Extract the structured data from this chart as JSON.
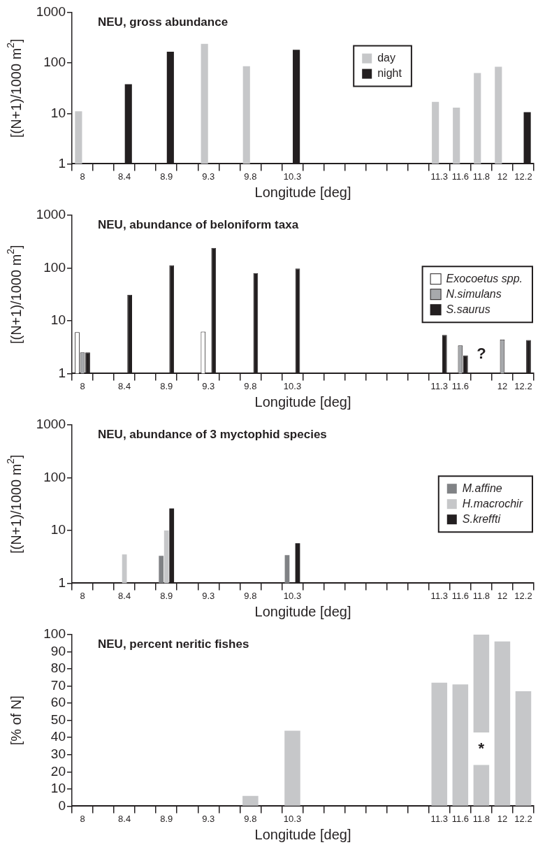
{
  "chart_data": [
    {
      "type": "bar",
      "title": "NEU, gross abundance",
      "xlabel": "Longitude [deg]",
      "ylabel": "[(N+1)/1000 m$^{2}$]",
      "categories": [
        "8",
        null,
        "8.4",
        null,
        "8.9",
        null,
        "9.3",
        null,
        "9.8",
        null,
        "10.3",
        null,
        null,
        null,
        null,
        null,
        null,
        "11.3",
        "11.6",
        "11.8",
        "12",
        "12.2"
      ],
      "log": true,
      "ylim": [
        1,
        1000
      ],
      "yticks": [
        1,
        10,
        100,
        1000
      ],
      "legend": "top right",
      "series": [
        {
          "name": "day",
          "color": "#c6c7c9",
          "values": [
            11,
            null,
            null,
            null,
            null,
            null,
            240,
            null,
            86,
            null,
            null,
            null,
            null,
            null,
            null,
            null,
            null,
            17,
            13,
            63,
            84,
            null
          ]
        },
        {
          "name": "night",
          "color": "#231f20",
          "values": [
            null,
            null,
            38,
            null,
            167,
            null,
            null,
            null,
            null,
            null,
            183,
            null,
            null,
            null,
            null,
            null,
            null,
            null,
            null,
            null,
            null,
            10.6
          ]
        }
      ]
    },
    {
      "type": "bar",
      "title": "NEU, abundance of beloniform taxa",
      "xlabel": "Longitude [deg]",
      "ylabel": "[(N+1)/1000 m$^{2}$]",
      "categories": [
        "8",
        null,
        "8.4",
        null,
        "8.9",
        null,
        "9.3",
        null,
        "9.8",
        null,
        "10.3",
        null,
        null,
        null,
        null,
        null,
        null,
        "11.3",
        "11.6",
        null,
        "12",
        "12.2"
      ],
      "log": true,
      "ylim": [
        1,
        1000
      ],
      "yticks": [
        1,
        10,
        100,
        1000
      ],
      "legend": "right",
      "annotations": [
        "?"
      ],
      "series": [
        {
          "name": "Exocoetus spp.",
          "color": "#ffffff",
          "values": [
            6.1,
            null,
            null,
            null,
            null,
            null,
            6.2,
            null,
            null,
            null,
            null,
            null,
            null,
            null,
            null,
            null,
            null,
            null,
            null,
            null,
            null,
            null
          ]
        },
        {
          "name": "N.simulans",
          "color": "#a7a9ac",
          "values": [
            2.5,
            null,
            null,
            null,
            null,
            null,
            null,
            null,
            null,
            null,
            null,
            null,
            null,
            null,
            null,
            null,
            null,
            null,
            3.4,
            null,
            4.4,
            null
          ]
        },
        {
          "name": "S.saurus",
          "color": "#231f20",
          "values": [
            2.5,
            null,
            31,
            null,
            113,
            null,
            240,
            null,
            80,
            null,
            98,
            null,
            null,
            null,
            null,
            null,
            null,
            5.4,
            2.2,
            null,
            null,
            4.3
          ]
        }
      ]
    },
    {
      "type": "bar",
      "title": "NEU, abundance of 3 myctophid species",
      "xlabel": "Longitude [deg]",
      "ylabel": "[(N+1)/1000 m$^{2}$]",
      "categories": [
        "8",
        null,
        "8.4",
        null,
        "8.9",
        null,
        "9.3",
        null,
        "9.8",
        null,
        "10.3",
        null,
        null,
        null,
        null,
        null,
        null,
        "11.3",
        "11.6",
        "11.8",
        "12",
        "12.2"
      ],
      "log": true,
      "ylim": [
        1,
        1000
      ],
      "yticks": [
        1,
        10,
        100,
        1000
      ],
      "legend": "right",
      "series": [
        {
          "name": "M.affine",
          "color": "#808285",
          "values": [
            null,
            null,
            null,
            null,
            3.3,
            null,
            null,
            null,
            null,
            null,
            3.4,
            null,
            null,
            null,
            null,
            null,
            null,
            null,
            null,
            null,
            null,
            null
          ]
        },
        {
          "name": "H.macrochir",
          "color": "#c6c7c9",
          "values": [
            null,
            null,
            3.5,
            null,
            10,
            null,
            null,
            null,
            null,
            null,
            null,
            null,
            null,
            null,
            null,
            null,
            null,
            null,
            null,
            null,
            null,
            null
          ]
        },
        {
          "name": "S.kreffti",
          "color": "#231f20",
          "values": [
            null,
            null,
            null,
            null,
            26,
            null,
            null,
            null,
            null,
            null,
            5.7,
            null,
            null,
            null,
            null,
            null,
            null,
            null,
            null,
            null,
            null,
            null
          ]
        }
      ]
    },
    {
      "type": "bar",
      "title": "NEU, percent neritic fishes",
      "xlabel": "Longitude [deg]",
      "ylabel": "[% of N]",
      "categories": [
        "8",
        null,
        "8.4",
        null,
        "8.9",
        null,
        "9.3",
        null,
        "9.8",
        null,
        "10.3",
        null,
        null,
        null,
        null,
        null,
        null,
        "11.3",
        "11.6",
        "11.8",
        "12",
        "12.2"
      ],
      "ylim": [
        0,
        100
      ],
      "yticks": [
        0,
        10,
        20,
        30,
        40,
        50,
        60,
        70,
        80,
        90,
        100
      ],
      "annotations": [
        "*"
      ],
      "series": [
        {
          "color": "#c6c7c9",
          "values": [
            null,
            null,
            null,
            null,
            null,
            null,
            null,
            null,
            6,
            null,
            44,
            null,
            null,
            null,
            null,
            null,
            null,
            72,
            71,
            24,
            96,
            67
          ]
        },
        {
          "color": "#c6c7c9",
          "base": [
            null,
            null,
            null,
            null,
            null,
            null,
            null,
            null,
            null,
            null,
            null,
            null,
            null,
            null,
            null,
            null,
            null,
            null,
            null,
            43,
            null,
            null
          ],
          "values": [
            null,
            null,
            null,
            null,
            null,
            null,
            null,
            null,
            null,
            null,
            null,
            null,
            null,
            null,
            null,
            null,
            null,
            null,
            null,
            57,
            null,
            null
          ]
        }
      ]
    }
  ]
}
